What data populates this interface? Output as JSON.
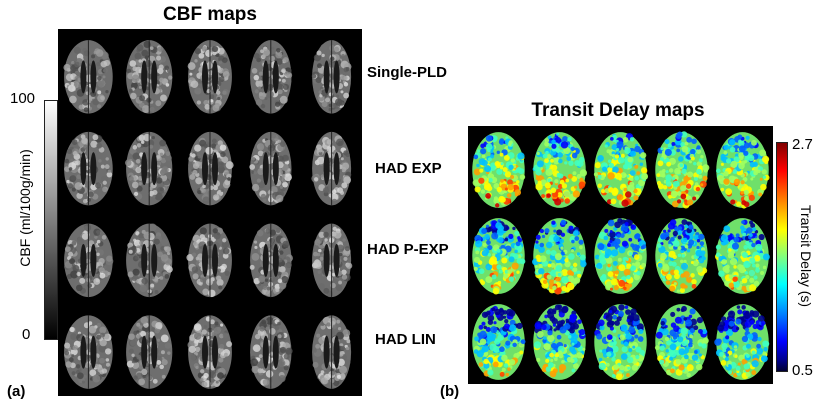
{
  "cbf": {
    "title": "CBF maps",
    "rows": [
      "Single-PLD",
      "HAD EXP",
      "HAD P-EXP",
      "HAD LIN"
    ],
    "colorbar": {
      "max_label": "100",
      "min_label": "0",
      "label": "CBF (ml/100g/min)",
      "colormap": "grayscale"
    },
    "panel_label": "(a)"
  },
  "td": {
    "title": "Transit Delay maps",
    "rows": 3,
    "colorbar": {
      "max_label": "2.7",
      "min_label": "0.5",
      "label": "Transit Delay (s)",
      "colormap": "jet"
    },
    "panel_label": "(b)"
  },
  "slices_per_row": 5
}
